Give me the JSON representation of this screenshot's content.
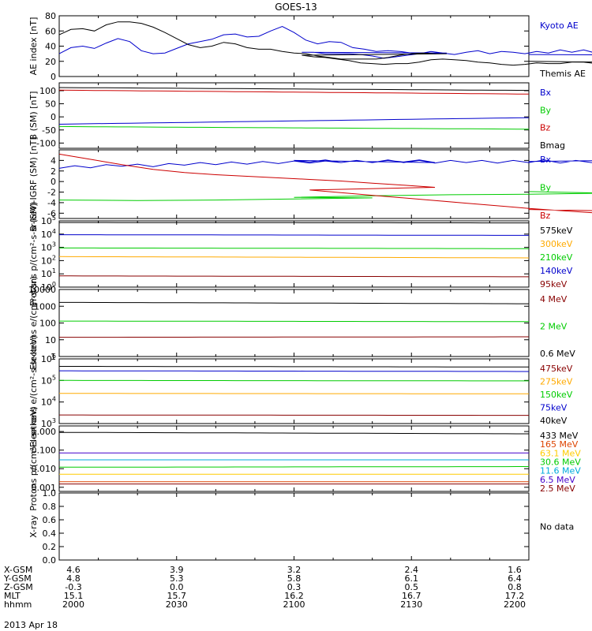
{
  "title": "GOES-13",
  "chart_data": [
    {
      "type": "line",
      "ylabel": "AE index [nT]",
      "ylim": [
        0,
        80
      ],
      "yticks": [
        "0",
        "20",
        "40",
        "60",
        "80"
      ],
      "scale": "linear",
      "series": [
        {
          "name": "Kyoto AE",
          "color": "#0000cc",
          "x": [
            2000,
            2003,
            2006,
            2009,
            2012,
            2015,
            2018,
            2021,
            2024,
            2027,
            2030,
            2033,
            2036,
            2039,
            2042,
            2045,
            2048,
            2051,
            2054,
            2057,
            2060,
            2063,
            2066,
            2069,
            2072,
            2075,
            2078,
            2081,
            2084,
            2087,
            2090,
            2093,
            2096,
            2099,
            2102,
            2105,
            2108,
            2111,
            2114,
            2117,
            2120,
            2123,
            2126,
            2129,
            2132,
            2135,
            2138,
            2141,
            2144,
            2147,
            2150,
            2153,
            2156,
            2159,
            2162,
            2165,
            2168,
            2171,
            2174,
            2177,
            2180,
            2183,
            2186,
            2189,
            2192,
            2195,
            2198,
            2200
          ],
          "y": [
            30,
            38,
            40,
            37,
            44,
            50,
            46,
            34,
            30,
            31,
            37,
            43,
            46,
            49,
            55,
            56,
            52,
            53,
            60,
            66,
            58,
            48,
            43,
            46,
            45,
            38,
            36,
            33,
            34,
            33,
            31,
            31,
            30,
            31,
            32,
            32,
            30,
            30,
            30,
            29,
            27,
            24,
            26,
            28,
            30,
            33,
            31,
            29,
            32,
            34,
            30,
            33,
            32,
            30,
            33,
            31,
            35,
            32,
            35,
            31,
            34,
            32,
            30,
            35,
            33,
            31,
            28,
            29
          ]
        },
        {
          "name": "Themis AE",
          "color": "#000000",
          "x": [
            2000,
            2003,
            2006,
            2009,
            2012,
            2015,
            2018,
            2021,
            2024,
            2027,
            2030,
            2033,
            2036,
            2039,
            2042,
            2045,
            2048,
            2051,
            2054,
            2057,
            2060,
            2063,
            2066,
            2069,
            2072,
            2075,
            2078,
            2081,
            2084,
            2087,
            2090,
            2093,
            2096,
            2099,
            2102,
            2105,
            2108,
            2111,
            2114,
            2117,
            2120,
            2123,
            2126,
            2129,
            2132,
            2135,
            2138,
            2141,
            2144,
            2147,
            2150,
            2153,
            2156,
            2159,
            2162,
            2165,
            2168,
            2171,
            2174,
            2177,
            2180,
            2183,
            2186,
            2189,
            2192,
            2195,
            2198,
            2200
          ],
          "y": [
            55,
            62,
            63,
            60,
            68,
            72,
            72,
            70,
            65,
            58,
            50,
            42,
            38,
            40,
            45,
            43,
            38,
            36,
            36,
            33,
            31,
            30,
            27,
            25,
            23,
            23,
            23,
            23,
            25,
            28,
            30,
            31,
            30,
            30,
            28,
            26,
            25,
            23,
            21,
            18,
            17,
            16,
            17,
            17,
            19,
            22,
            23,
            22,
            21,
            19,
            18,
            16,
            15,
            16,
            18,
            17,
            17,
            19,
            19,
            17,
            16,
            17,
            18,
            19,
            20,
            19,
            18,
            20
          ]
        }
      ]
    },
    {
      "type": "line",
      "ylabel": "B (SM) [nT]",
      "ylim": [
        -120,
        130
      ],
      "yticks": [
        "-100",
        "-50",
        "0",
        "50",
        "100"
      ],
      "scale": "linear",
      "series": [
        {
          "name": "Bx",
          "color": "#0000cc",
          "x": [
            2000,
            2200
          ],
          "y": [
            -28,
            -3
          ]
        },
        {
          "name": "By",
          "color": "#00cc00",
          "x": [
            2000,
            2200
          ],
          "y": [
            -37,
            -47
          ]
        },
        {
          "name": "Bz",
          "color": "#cc0000",
          "x": [
            2000,
            2200
          ],
          "y": [
            102,
            87
          ]
        },
        {
          "name": "Bmag",
          "color": "#000000",
          "x": [
            2000,
            2200
          ],
          "y": [
            112,
            101
          ]
        }
      ]
    },
    {
      "type": "line",
      "ylabel": "B (SM)-IGRF (SM) [nT]",
      "ylim": [
        -7,
        6
      ],
      "yticks": [
        "-6",
        "-4",
        "-2",
        "0",
        "2",
        "4"
      ],
      "scale": "linear",
      "series": [
        {
          "name": "Bx",
          "color": "#0000cc",
          "x": [
            2000,
            2004,
            2008,
            2012,
            2016,
            2020,
            2024,
            2028,
            2032,
            2036,
            2040,
            2044,
            2048,
            2052,
            2056,
            2060,
            2064,
            2068,
            2072,
            2076,
            2080,
            2084,
            2088,
            2092,
            2096,
            2100,
            2104,
            2108,
            2112,
            2116,
            2120,
            2124,
            2128,
            2132,
            2136,
            2140,
            2144,
            2148,
            2152,
            2156,
            2160,
            2164,
            2168,
            2172,
            2176,
            2180,
            2184,
            2188,
            2192,
            2196,
            2200
          ],
          "y": [
            2.5,
            3.0,
            2.6,
            3.2,
            2.9,
            3.3,
            2.8,
            3.4,
            3.1,
            3.6,
            3.2,
            3.7,
            3.3,
            3.8,
            3.4,
            3.9,
            3.5,
            3.9,
            3.6,
            4.0,
            3.6,
            4.0,
            3.7,
            4.1,
            3.6,
            4.0,
            3.7,
            4.1,
            3.6,
            4.0,
            3.6,
            4.1,
            3.6,
            4.0,
            3.5,
            4.0,
            3.6,
            4.0,
            3.5,
            4.0,
            3.6,
            4.1,
            3.5,
            4.0,
            3.6,
            4.1,
            3.5,
            4.0,
            3.6,
            4.1,
            3.8
          ]
        },
        {
          "name": "By",
          "color": "#00cc00",
          "x": [
            2000,
            2020,
            2040,
            2060,
            2080,
            2100,
            2120,
            2140,
            2160,
            2180,
            2200
          ],
          "y": [
            -3.5,
            -3.6,
            -3.5,
            -3.3,
            -3.1,
            -3.0,
            -2.7,
            -2.5,
            -2.4,
            -2.2,
            -1.9
          ]
        },
        {
          "name": "Bz",
          "color": "#cc0000",
          "x": [
            2000,
            2008,
            2016,
            2024,
            2032,
            2040,
            2048,
            2056,
            2064,
            2072,
            2080,
            2088,
            2096,
            2104,
            2112,
            2120,
            2128,
            2136,
            2144,
            2152,
            2160,
            2168,
            2176,
            2184,
            2192,
            2200
          ],
          "y": [
            5.2,
            4.2,
            3.2,
            2.3,
            1.7,
            1.3,
            1.0,
            0.7,
            0.4,
            0.1,
            -0.3,
            -0.7,
            -1.1,
            -1.6,
            -2.1,
            -2.6,
            -3.1,
            -3.6,
            -4.1,
            -4.6,
            -5.1,
            -5.5,
            -5.9,
            -5.8,
            -5.7,
            -5.3
          ]
        }
      ]
    },
    {
      "type": "line",
      "ylabel": "Protons p/(cm²-s-sr-keV)",
      "ylim": [
        1,
        100000
      ],
      "yticks": [
        "10^0",
        "10^1",
        "10^2",
        "10^3",
        "10^4",
        "10^5"
      ],
      "scale": "log",
      "series": [
        {
          "name": "575keV",
          "color": "#000000",
          "x": [
            2000,
            2200
          ],
          "y": [
            75000,
            70000
          ]
        },
        {
          "name": "300keV",
          "color": "#ffaa00",
          "x": [
            2000,
            2200
          ],
          "y": [
            200,
            160
          ]
        },
        {
          "name": "210keV",
          "color": "#00cc00",
          "x": [
            2000,
            2200
          ],
          "y": [
            900,
            800
          ]
        },
        {
          "name": "140keV",
          "color": "#0000cc",
          "x": [
            2000,
            2200
          ],
          "y": [
            9000,
            8000
          ]
        },
        {
          "name": "95keV",
          "color": "#880000",
          "x": [
            2000,
            2200
          ],
          "y": [
            7,
            6
          ]
        }
      ]
    },
    {
      "type": "line",
      "ylabel": "Electrons e/(cm²-s-sr)",
      "ylim": [
        1,
        10000
      ],
      "yticks": [
        "1",
        "10",
        "100",
        "1000",
        "10000"
      ],
      "scale": "log",
      "series": [
        {
          "name": "4 MeV",
          "color": "#880000",
          "x": [
            2000,
            2200
          ],
          "y": [
            14,
            15
          ]
        },
        {
          "name": "2 MeV",
          "color": "#00cc00",
          "x": [
            2000,
            2200
          ],
          "y": [
            130,
            120
          ]
        },
        {
          "name": "0.6 MeV",
          "color": "#000000",
          "x": [
            2000,
            2200
          ],
          "y": [
            1700,
            1400
          ]
        }
      ]
    },
    {
      "type": "line",
      "ylabel": "Electrons e/(cm²-s-sr-keV)",
      "ylim": [
        1000,
        1000000
      ],
      "yticks": [
        "10^3",
        "10^4",
        "10^5",
        "10^6"
      ],
      "scale": "log",
      "series": [
        {
          "name": "475keV",
          "color": "#880000",
          "x": [
            2000,
            2200
          ],
          "y": [
            2500,
            2400
          ]
        },
        {
          "name": "275keV",
          "color": "#ffaa00",
          "x": [
            2000,
            2200
          ],
          "y": [
            25000,
            24000
          ]
        },
        {
          "name": "150keV",
          "color": "#00cc00",
          "x": [
            2000,
            2200
          ],
          "y": [
            100000,
            95000
          ]
        },
        {
          "name": "75keV",
          "color": "#0000cc",
          "x": [
            2000,
            2200
          ],
          "y": [
            280000,
            260000
          ]
        },
        {
          "name": "40keV",
          "color": "#000000",
          "x": [
            2000,
            2200
          ],
          "y": [
            450000,
            420000
          ]
        }
      ]
    },
    {
      "type": "line",
      "ylabel": "Protons p/(cm²-s-sr-keV)",
      "ylim": [
        0.0006,
        2
      ],
      "yticks": [
        "0.001",
        "0.010",
        "0.100",
        "1.000"
      ],
      "scale": "log",
      "series": [
        {
          "name": "433 MeV",
          "color": "#000000",
          "x": [
            2000,
            2200
          ],
          "y": [
            0.9,
            0.75
          ]
        },
        {
          "name": "165 MeV",
          "color": "#dd4400",
          "x": [
            2000,
            2200
          ],
          "y": [
            0.002,
            0.002
          ]
        },
        {
          "name": "63.1 MeV",
          "color": "#ffcc00",
          "x": [
            2000,
            2200
          ],
          "y": [
            0.005,
            0.005
          ]
        },
        {
          "name": "30.6 MeV",
          "color": "#00cc00",
          "x": [
            2000,
            2200
          ],
          "y": [
            0.012,
            0.013
          ]
        },
        {
          "name": "11.6 MeV",
          "color": "#00aadd",
          "x": [
            2000,
            2200
          ],
          "y": [
            0.03,
            0.03
          ]
        },
        {
          "name": "6.5 MeV",
          "color": "#4400cc",
          "x": [
            2000,
            2200
          ],
          "y": [
            0.07,
            0.07
          ]
        },
        {
          "name": "2.5 MeV",
          "color": "#880000",
          "x": [
            2000,
            2200
          ],
          "y": [
            0.0015,
            0.0015
          ]
        }
      ]
    },
    {
      "type": "line",
      "ylabel": "X-ray",
      "ylim": [
        0,
        1
      ],
      "yticks": [
        "0.0",
        "0.2",
        "0.4",
        "0.6",
        "0.8",
        "1.0"
      ],
      "scale": "linear",
      "annotation": "No data",
      "series": []
    }
  ],
  "xaxis": {
    "rows": [
      {
        "label": "X-GSM",
        "values": [
          "4.6",
          "3.9",
          "3.2",
          "2.4",
          "1.6"
        ]
      },
      {
        "label": "Y-GSM",
        "values": [
          "4.8",
          "5.3",
          "5.8",
          "6.1",
          "6.4"
        ]
      },
      {
        "label": "Z-GSM",
        "values": [
          "-0.3",
          "0.0",
          "0.3",
          "0.5",
          "0.8"
        ]
      },
      {
        "label": "MLT",
        "values": [
          "15.1",
          "15.7",
          "16.2",
          "16.7",
          "17.2"
        ]
      },
      {
        "label": "hhmm",
        "values": [
          "2000",
          "2030",
          "2100",
          "2130",
          "2200"
        ]
      }
    ],
    "date": "2013 Apr 18"
  }
}
